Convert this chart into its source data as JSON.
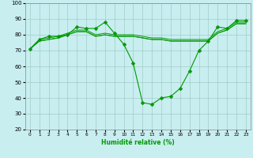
{
  "xlabel": "Humidité relative (%)",
  "bg_color": "#c8eef0",
  "grid_color": "#a0ccc8",
  "line_color": "#009900",
  "marker": "D",
  "marker_size": 2.5,
  "xlim": [
    -0.5,
    23.5
  ],
  "ylim": [
    20,
    100
  ],
  "yticks": [
    20,
    30,
    40,
    50,
    60,
    70,
    80,
    90,
    100
  ],
  "xticks": [
    0,
    1,
    2,
    3,
    4,
    5,
    6,
    7,
    8,
    9,
    10,
    11,
    12,
    13,
    14,
    15,
    16,
    17,
    18,
    19,
    20,
    21,
    22,
    23
  ],
  "series": [
    [
      71,
      77,
      79,
      79,
      80,
      85,
      84,
      84,
      88,
      81,
      74,
      62,
      37,
      36,
      40,
      41,
      46,
      57,
      70,
      76,
      85,
      84,
      89,
      89
    ],
    [
      71,
      77,
      78,
      79,
      81,
      83,
      83,
      80,
      81,
      80,
      80,
      80,
      79,
      78,
      78,
      77,
      77,
      77,
      77,
      77,
      82,
      84,
      88,
      88
    ],
    [
      71,
      76,
      77,
      78,
      80,
      82,
      82,
      79,
      80,
      79,
      79,
      79,
      78,
      77,
      77,
      76,
      76,
      76,
      76,
      76,
      81,
      83,
      87,
      87
    ],
    [
      71,
      76,
      77,
      78,
      80,
      82,
      82,
      79,
      80,
      79,
      79,
      79,
      78,
      77,
      77,
      76,
      76,
      76,
      76,
      76,
      81,
      83,
      87,
      87
    ]
  ]
}
